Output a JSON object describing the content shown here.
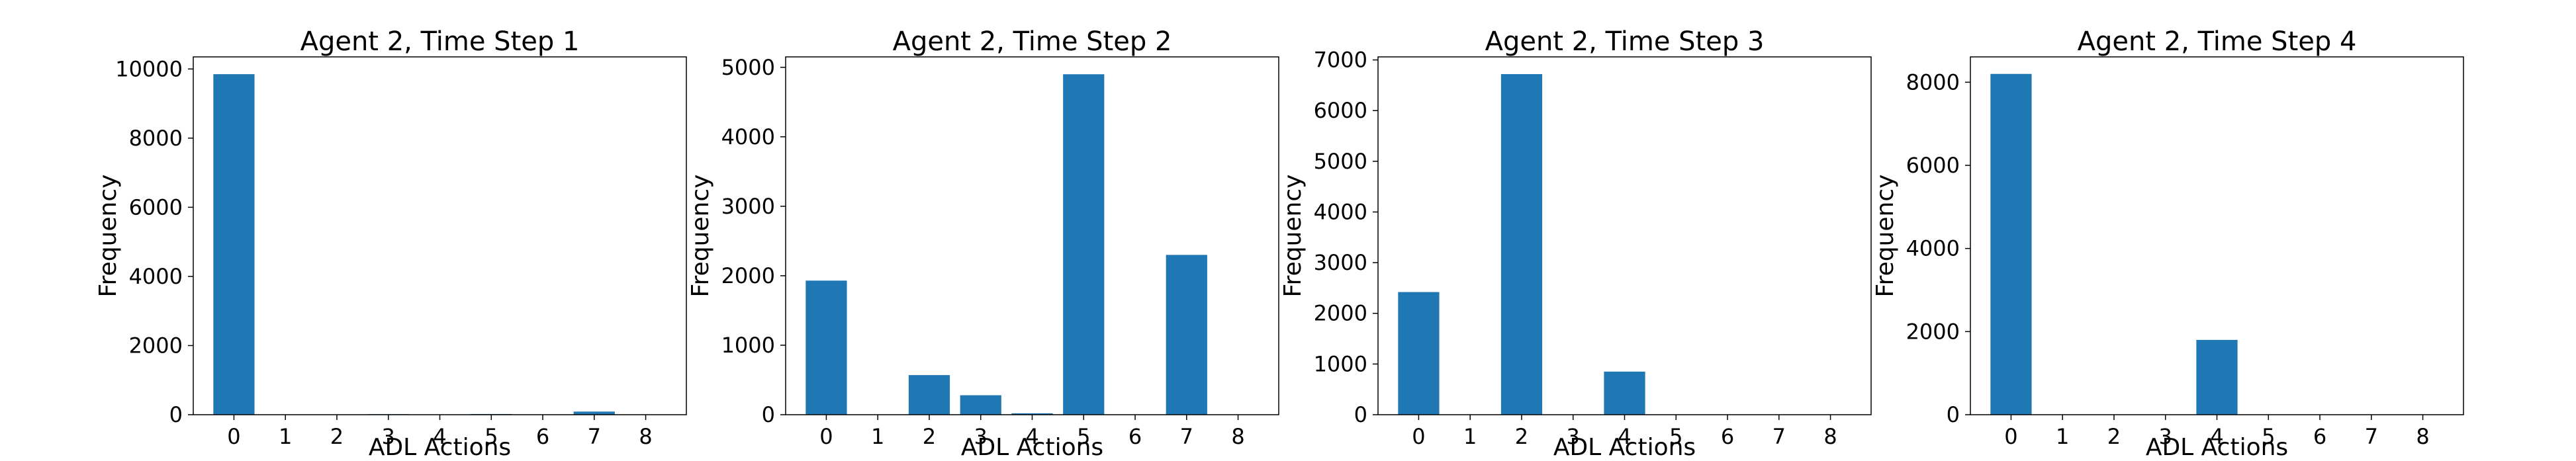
{
  "chart_data": [
    {
      "type": "bar",
      "title": "Agent 2, Time Step 1",
      "xlabel": "ADL Actions",
      "ylabel": "Frequency",
      "categories": [
        "0",
        "1",
        "2",
        "3",
        "4",
        "5",
        "6",
        "7",
        "8"
      ],
      "values": [
        9850,
        0,
        0,
        15,
        0,
        20,
        0,
        90,
        0
      ],
      "yticks": [
        0,
        2000,
        4000,
        6000,
        8000,
        10000
      ],
      "ylim": [
        0,
        10350
      ],
      "color": "#1f77b4"
    },
    {
      "type": "bar",
      "title": "Agent 2, Time Step 2",
      "xlabel": "ADL Actions",
      "ylabel": "Frequency",
      "categories": [
        "0",
        "1",
        "2",
        "3",
        "4",
        "5",
        "6",
        "7",
        "8"
      ],
      "values": [
        1930,
        0,
        570,
        280,
        20,
        4900,
        0,
        2300,
        0
      ],
      "yticks": [
        0,
        1000,
        2000,
        3000,
        4000,
        5000
      ],
      "ylim": [
        0,
        5150
      ],
      "color": "#1f77b4"
    },
    {
      "type": "bar",
      "title": "Agent 2, Time Step 3",
      "xlabel": "ADL Actions",
      "ylabel": "Frequency",
      "categories": [
        "0",
        "1",
        "2",
        "3",
        "4",
        "5",
        "6",
        "7",
        "8"
      ],
      "values": [
        2420,
        0,
        6720,
        0,
        850,
        0,
        0,
        0,
        0
      ],
      "yticks": [
        0,
        1000,
        2000,
        3000,
        4000,
        5000,
        6000,
        7000
      ],
      "ylim": [
        0,
        7060
      ],
      "color": "#1f77b4"
    },
    {
      "type": "bar",
      "title": "Agent 2, Time Step 4",
      "xlabel": "ADL Actions",
      "ylabel": "Frequency",
      "categories": [
        "0",
        "1",
        "2",
        "3",
        "4",
        "5",
        "6",
        "7",
        "8"
      ],
      "values": [
        8200,
        0,
        0,
        0,
        1800,
        0,
        0,
        0,
        0
      ],
      "yticks": [
        0,
        2000,
        4000,
        6000,
        8000
      ],
      "ylim": [
        0,
        8610
      ],
      "color": "#1f77b4"
    }
  ]
}
